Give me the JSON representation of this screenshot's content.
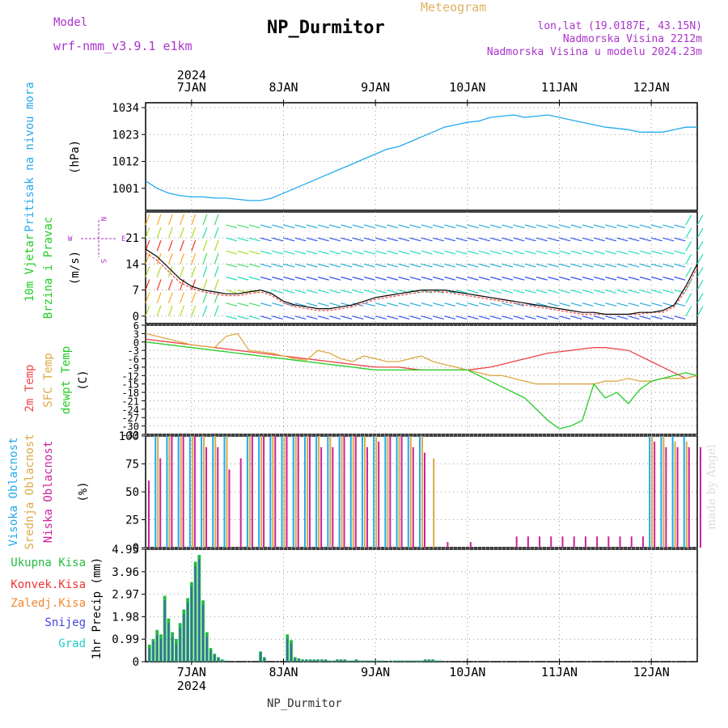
{
  "header": {
    "model_label": "Model",
    "model_name": "wrf-nmm_v3.9.1 e1km",
    "title": "NP_Durmitor",
    "product": "Meteogram",
    "location": "lon,lat (19.0187E, 43.15N)",
    "elevation": "Nadmorska Visina 2212m",
    "model_elevation": "Nadmorska Visina u modelu 2024.23m",
    "footer": "NP_Durmitor",
    "credit": "made by Angel"
  },
  "colors": {
    "title": "#000000",
    "purple": "#aa33cc",
    "gold": "#e0b060",
    "pressure": "#22aaee",
    "t2m": "#ee4444",
    "tsfc": "#ddaa44",
    "dewpt": "#22cc22",
    "high_cloud": "#22aaee",
    "mid_cloud": "#ddaa44",
    "low_cloud": "#cc2299",
    "total_precip": "#22bb44",
    "conv_precip": "#ee3333",
    "freezing_precip": "#ee8833",
    "snow": "#4444dd",
    "hail": "#22cccc"
  },
  "time_axis": {
    "year": "2024",
    "days": [
      "7JAN",
      "8JAN",
      "9JAN",
      "10JAN",
      "11JAN",
      "12JAN"
    ],
    "start_hour": 0,
    "end_hour": 144
  },
  "chart_data": [
    {
      "type": "line",
      "panel": "pressure",
      "ylabel": [
        "Pritisak na nivou mora",
        "(hPa)"
      ],
      "yticks": [
        1001,
        1012,
        1023,
        1034
      ],
      "ylim": [
        992,
        1036
      ],
      "grid": true,
      "x_hours": [
        0,
        3,
        6,
        9,
        12,
        15,
        18,
        21,
        24,
        27,
        30,
        33,
        36,
        39,
        42,
        45,
        48,
        51,
        54,
        57,
        60,
        63,
        66,
        69,
        72,
        75,
        78,
        81,
        84,
        87,
        90,
        93,
        96,
        99,
        102,
        105,
        108,
        111,
        114,
        117,
        120,
        123,
        126,
        129,
        132,
        135,
        138,
        141,
        144
      ],
      "series": [
        {
          "values": [
            1004,
            1001,
            999,
            998,
            997.5,
            997.5,
            997,
            997,
            996.5,
            996,
            996,
            997,
            999,
            1001,
            1003,
            1005,
            1007,
            1009,
            1011,
            1013,
            1015,
            1017,
            1018,
            1020,
            1022,
            1024,
            1026,
            1027,
            1028,
            1028.5,
            1030,
            1030.5,
            1031,
            1030,
            1030.5,
            1031,
            1030,
            1029,
            1028,
            1027,
            1026,
            1025.5,
            1025,
            1024,
            1024,
            1024,
            1025,
            1026,
            1026
          ]
        }
      ]
    },
    {
      "type": "line",
      "panel": "wind",
      "ylabel": [
        "10m Vjetar",
        "Brzina i Pravac",
        "(m/s)"
      ],
      "direction_legend": [
        "N",
        "E",
        "S",
        "W"
      ],
      "yticks": [
        0,
        7,
        14,
        21
      ],
      "ylim": [
        -2,
        28
      ],
      "grid": true,
      "x_hours": [
        0,
        3,
        6,
        9,
        12,
        15,
        18,
        21,
        24,
        27,
        30,
        33,
        36,
        39,
        42,
        45,
        48,
        51,
        54,
        57,
        60,
        63,
        66,
        69,
        72,
        75,
        78,
        81,
        84,
        87,
        90,
        93,
        96,
        99,
        102,
        105,
        108,
        111,
        114,
        117,
        120,
        123,
        126,
        129,
        132,
        135,
        138,
        141,
        144
      ],
      "series": [
        {
          "name": "speed",
          "values": [
            18,
            16,
            13,
            10,
            8,
            7,
            6.5,
            6,
            6,
            6.5,
            7,
            6,
            4,
            3,
            2.5,
            2,
            2,
            2.5,
            3,
            4,
            5,
            5.5,
            6,
            6.5,
            7,
            7,
            7,
            6.5,
            6,
            5.5,
            5,
            4.5,
            4,
            3.5,
            3,
            2.5,
            2,
            1.5,
            1,
            1,
            0.5,
            0.5,
            0.5,
            1,
            1,
            1.5,
            3,
            8,
            14
          ]
        },
        {
          "name": "gust",
          "values": [
            17,
            15,
            12,
            9,
            7.5,
            6.5,
            6,
            5.5,
            5.5,
            6,
            6.5,
            5.5,
            3.5,
            2.5,
            2,
            1.5,
            1.5,
            2,
            2.5,
            3.5,
            4.5,
            5,
            5.5,
            6,
            6.5,
            6.5,
            6.5,
            6,
            5.5,
            5,
            4.5,
            4,
            3.5,
            3,
            2.5,
            2,
            1.5,
            1,
            0.5,
            0.5,
            0.5,
            0.5,
            0.5,
            0.5,
            1,
            1,
            2.5,
            7,
            13
          ]
        }
      ]
    },
    {
      "type": "line",
      "panel": "temperature",
      "ylabel": [
        "2m Temp",
        "SFC Temp",
        "dewpt Temp",
        "(C)"
      ],
      "yticks": [
        6,
        3,
        0,
        -3,
        -6,
        -9,
        -12,
        -15,
        -18,
        -21,
        -24,
        -27,
        -30,
        -33
      ],
      "ylim": [
        -33,
        6
      ],
      "grid": true,
      "x_hours": [
        0,
        3,
        6,
        9,
        12,
        15,
        18,
        21,
        24,
        27,
        30,
        33,
        36,
        39,
        42,
        45,
        48,
        51,
        54,
        57,
        60,
        63,
        66,
        69,
        72,
        75,
        78,
        81,
        84,
        87,
        90,
        93,
        96,
        99,
        102,
        105,
        108,
        111,
        114,
        117,
        120,
        123,
        126,
        129,
        132,
        135,
        138,
        141,
        144
      ],
      "series": [
        {
          "name": "2m Temp",
          "values": [
            1,
            0.5,
            0,
            -0.5,
            -1,
            -1.5,
            -2,
            -2.5,
            -3,
            -3.5,
            -4,
            -4.5,
            -5,
            -5.5,
            -6,
            -6.5,
            -7,
            -7.5,
            -8,
            -8.5,
            -9,
            -9,
            -9,
            -9.5,
            -10,
            -10,
            -10,
            -10,
            -10,
            -9.5,
            -9,
            -8,
            -7,
            -6,
            -5,
            -4,
            -3.5,
            -3,
            -2.5,
            -2,
            -2,
            -2.5,
            -3,
            -5,
            -7,
            -9,
            -11,
            -13,
            -12
          ]
        },
        {
          "name": "SFC Temp",
          "values": [
            3,
            2,
            1,
            0,
            -1,
            -1.5,
            -2,
            2,
            3,
            -3,
            -3.5,
            -4,
            -5,
            -6,
            -6.5,
            -3,
            -4,
            -6,
            -7,
            -5,
            -6,
            -7,
            -7,
            -6,
            -5,
            -7,
            -8,
            -9,
            -10,
            -11,
            -12,
            -12,
            -13,
            -14,
            -15,
            -15,
            -15,
            -15,
            -15,
            -15,
            -14,
            -14,
            -13,
            -14,
            -14,
            -13,
            -13,
            -13,
            -12
          ]
        },
        {
          "name": "dewpt Temp",
          "values": [
            0,
            -0.5,
            -1,
            -1.5,
            -2,
            -2.5,
            -3,
            -3.5,
            -4,
            -4.5,
            -5,
            -5.5,
            -6,
            -6.5,
            -7,
            -7.5,
            -8,
            -8.5,
            -9,
            -9.5,
            -10,
            -10,
            -10,
            -10,
            -10,
            -10,
            -10,
            -10,
            -10,
            -12,
            -14,
            -16,
            -18,
            -20,
            -24,
            -28,
            -31,
            -30,
            -28,
            -15,
            -20,
            -18,
            -22,
            -17,
            -14,
            -13,
            -12,
            -11,
            -12
          ]
        }
      ]
    },
    {
      "type": "bar",
      "panel": "clouds",
      "ylabel": [
        "Visoka Oblacnost",
        "Srednja Oblacnost",
        "Niska Oblacnost",
        "(%)"
      ],
      "yticks": [
        0,
        25,
        50,
        75,
        100
      ],
      "ylim": [
        0,
        100
      ],
      "grid": true,
      "x_hours": [
        0,
        3,
        6,
        9,
        12,
        15,
        18,
        21,
        24,
        27,
        30,
        33,
        36,
        39,
        42,
        45,
        48,
        51,
        54,
        57,
        60,
        63,
        66,
        69,
        72,
        75,
        78,
        81,
        84,
        87,
        90,
        93,
        96,
        99,
        102,
        105,
        108,
        111,
        114,
        117,
        120,
        123,
        126,
        129,
        132,
        135,
        138,
        141,
        144
      ],
      "series": [
        {
          "name": "Visoka Oblacnost",
          "values": [
            0,
            100,
            100,
            100,
            100,
            100,
            100,
            100,
            0,
            100,
            100,
            100,
            100,
            100,
            100,
            100,
            100,
            100,
            100,
            100,
            100,
            100,
            100,
            100,
            100,
            0,
            0,
            0,
            0,
            0,
            0,
            0,
            0,
            0,
            0,
            0,
            0,
            0,
            0,
            0,
            0,
            0,
            0,
            0,
            100,
            100,
            100,
            100,
            0
          ]
        },
        {
          "name": "Srednja Oblacnost",
          "values": [
            0,
            100,
            100,
            100,
            100,
            100,
            100,
            100,
            0,
            100,
            100,
            100,
            100,
            100,
            100,
            100,
            100,
            100,
            100,
            100,
            100,
            100,
            100,
            100,
            100,
            80,
            0,
            0,
            0,
            0,
            0,
            0,
            0,
            0,
            0,
            0,
            0,
            0,
            0,
            0,
            0,
            0,
            0,
            0,
            100,
            100,
            95,
            95,
            0
          ]
        },
        {
          "name": "Niska Oblacnost",
          "values": [
            60,
            80,
            100,
            100,
            100,
            90,
            90,
            70,
            80,
            100,
            100,
            100,
            100,
            100,
            100,
            90,
            90,
            100,
            100,
            90,
            95,
            100,
            100,
            90,
            85,
            0,
            5,
            0,
            5,
            0,
            0,
            0,
            10,
            10,
            10,
            10,
            10,
            10,
            10,
            10,
            10,
            10,
            10,
            10,
            95,
            90,
            90,
            90,
            90
          ]
        }
      ]
    },
    {
      "type": "bar",
      "panel": "precip",
      "ylabel": [
        "1hr Precip (mm)"
      ],
      "legend": [
        "Ukupna Kisa",
        "Konvek.Kisa",
        "Zaledj.Kisa",
        "Snijeg",
        "Grad"
      ],
      "yticks": [
        0,
        0.99,
        1.98,
        2.97,
        3.96,
        4.95
      ],
      "ylim": [
        0,
        4.95
      ],
      "grid": true,
      "x_hours": [
        1,
        2,
        3,
        4,
        5,
        6,
        7,
        8,
        9,
        10,
        11,
        12,
        13,
        14,
        15,
        16,
        17,
        18,
        19,
        20,
        21,
        22,
        23,
        24,
        25,
        26,
        27,
        28,
        29,
        30,
        31,
        32,
        33,
        34,
        35,
        36,
        37,
        38,
        39,
        40,
        41,
        42,
        43,
        44,
        45,
        46,
        47,
        48,
        49,
        50,
        51,
        52,
        53,
        54,
        55,
        56,
        57,
        58,
        59,
        60,
        61,
        62,
        63,
        64,
        65,
        66,
        67,
        68,
        69,
        70,
        71,
        72,
        73,
        74,
        75,
        76,
        77,
        78,
        79,
        80,
        81,
        82,
        83,
        84
      ],
      "series": [
        {
          "name": "Ukupna Kisa",
          "values": [
            0.75,
            1.0,
            1.4,
            1.2,
            2.9,
            1.9,
            1.3,
            1.0,
            1.7,
            2.3,
            2.8,
            3.5,
            4.4,
            4.7,
            2.7,
            1.3,
            0.6,
            0.35,
            0.2,
            0.1,
            0.05,
            0,
            0,
            0,
            0,
            0,
            0,
            0,
            0,
            0.45,
            0.2,
            0,
            0,
            0,
            0,
            0,
            1.2,
            0.95,
            0.2,
            0.15,
            0.1,
            0.1,
            0.1,
            0.1,
            0.1,
            0.1,
            0.1,
            0.05,
            0.05,
            0.1,
            0.1,
            0.1,
            0.05,
            0.05,
            0.1,
            0.05,
            0.05,
            0.05,
            0.05,
            0.05,
            0.05,
            0.05,
            0,
            0.05,
            0.05,
            0.05,
            0.05,
            0.05,
            0.05,
            0.05,
            0.05,
            0.05,
            0.1,
            0.1,
            0.1,
            0.05,
            0.05,
            0,
            0,
            0,
            0,
            0,
            0,
            0
          ]
        },
        {
          "name": "Snijeg",
          "values": [
            0.6,
            0.9,
            1.2,
            1.0,
            2.7,
            1.7,
            1.1,
            0.8,
            1.5,
            2.1,
            2.6,
            3.3,
            4.2,
            4.5,
            2.5,
            1.1,
            0.5,
            0.3,
            0.15,
            0.08,
            0.04,
            0,
            0,
            0,
            0,
            0,
            0,
            0,
            0,
            0.4,
            0.15,
            0,
            0,
            0,
            0,
            0,
            1.0,
            0.8,
            0.15,
            0.12,
            0.08,
            0.08,
            0.08,
            0.08,
            0.08,
            0.08,
            0.08,
            0.04,
            0.04,
            0.08,
            0.08,
            0.08,
            0.04,
            0.04,
            0.08,
            0.04,
            0.04,
            0.04,
            0.04,
            0.04,
            0.04,
            0.04,
            0,
            0.04,
            0.04,
            0.04,
            0.04,
            0.04,
            0.04,
            0.04,
            0.04,
            0.04,
            0.08,
            0.08,
            0.08,
            0.04,
            0.04,
            0,
            0,
            0,
            0,
            0,
            0,
            0
          ]
        }
      ]
    }
  ]
}
